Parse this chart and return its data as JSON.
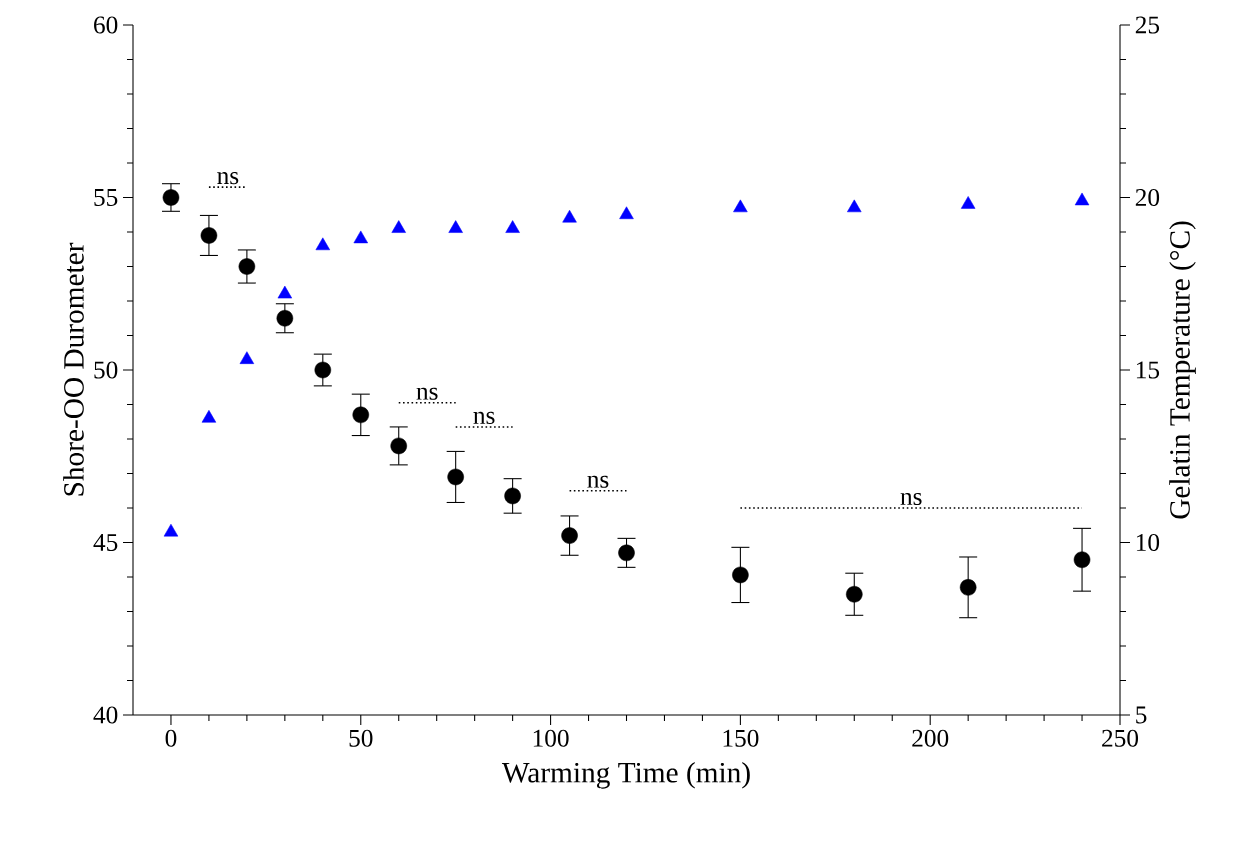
{
  "chart_data": {
    "type": "scatter",
    "xlabel": "Warming Time (min)",
    "ylabel": "Shore-OO Durometer",
    "y2label": "Gelatin Temperature (°C)",
    "x": [
      0,
      10,
      20,
      30,
      40,
      50,
      60,
      75,
      90,
      105,
      120,
      150,
      180,
      210,
      240
    ],
    "xlim": [
      -10,
      250
    ],
    "xticks": [
      0,
      50,
      100,
      150,
      200,
      250
    ],
    "ylim": [
      40,
      60
    ],
    "yticks": [
      40,
      45,
      50,
      55,
      60
    ],
    "y2lim": [
      5,
      25
    ],
    "y2ticks": [
      5,
      10,
      15,
      20,
      25
    ],
    "grid": false,
    "series": [
      {
        "color": "#000000",
        "marker": "circle",
        "values": [
          55.0,
          53.9,
          53.0,
          51.5,
          50.0,
          48.7,
          47.8,
          46.9,
          46.35,
          45.2,
          44.7,
          44.06,
          43.5,
          43.7,
          44.5
        ],
        "errors": [
          0.4,
          0.58,
          0.48,
          0.42,
          0.46,
          0.6,
          0.55,
          0.74,
          0.5,
          0.57,
          0.42,
          0.8,
          0.61,
          0.88,
          0.91
        ]
      },
      {
        "color": "#0000ff",
        "marker": "triangle",
        "axis": "y2",
        "values": [
          10.3,
          13.6,
          15.3,
          17.2,
          18.6,
          18.8,
          19.1,
          19.1,
          19.1,
          19.4,
          19.5,
          19.7,
          19.7,
          19.8,
          19.9
        ]
      },
      {
        "type": "line",
        "line_style": "dotted",
        "marker": "none",
        "color": "#000000",
        "x": [
          10,
          20
        ],
        "values": [
          55.3,
          55.3
        ]
      },
      {
        "type": "line",
        "line_style": "dotted",
        "marker": "none",
        "color": "#000000",
        "x": [
          60,
          75
        ],
        "values": [
          49.05,
          49.05
        ]
      },
      {
        "type": "line",
        "line_style": "dotted",
        "marker": "none",
        "color": "#000000",
        "x": [
          75,
          90
        ],
        "values": [
          48.35,
          48.35
        ]
      },
      {
        "type": "line",
        "line_style": "dotted",
        "marker": "none",
        "color": "#000000",
        "x": [
          105,
          120
        ],
        "values": [
          46.5,
          46.5
        ]
      },
      {
        "type": "line",
        "line_style": "dotted",
        "marker": "none",
        "color": "#000000",
        "x": [
          150,
          240
        ],
        "values": [
          46.0,
          46.0
        ]
      }
    ],
    "annotations": [
      {
        "text": "ns",
        "x": 15,
        "y": 55.3
      },
      {
        "text": "ns",
        "x": 67.5,
        "y": 49.05
      },
      {
        "text": "ns",
        "x": 82.5,
        "y": 48.35
      },
      {
        "text": "ns",
        "x": 112.5,
        "y": 46.5
      },
      {
        "text": "ns",
        "x": 195,
        "y": 46.0
      }
    ]
  }
}
